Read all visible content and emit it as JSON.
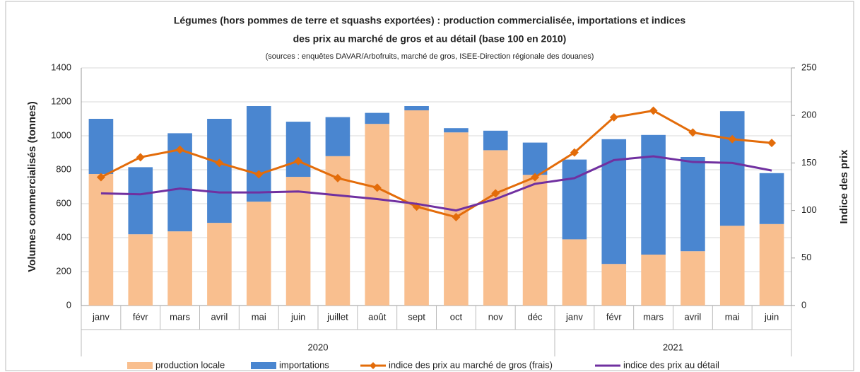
{
  "chart_data": {
    "type": "bar",
    "title": "Légumes (hors pommes de terre et squashs exportées) : production commercialisée, importations et indices",
    "title_line2": "des prix au marché de gros et au détail (base 100 en 2010)",
    "subtitle": "(sources : enquêtes DAVAR/Arbofruits, marché de gros, ISEE-Direction régionale des douanes)",
    "ylabel": "Volumes commercialisés (tonnes)",
    "y2label": "Indice des prix",
    "groups": [
      {
        "label": "2020",
        "categories": [
          "janv",
          "févr",
          "mars",
          "avril",
          "mai",
          "juin",
          "juillet",
          "août",
          "sept",
          "oct",
          "nov",
          "déc"
        ]
      },
      {
        "label": "2021",
        "categories": [
          "janv",
          "févr",
          "mars",
          "avril",
          "mai",
          "juin"
        ]
      }
    ],
    "series": [
      {
        "name": "production locale",
        "color": "#f9bf8f",
        "kind": "bar",
        "values": [
          775,
          420,
          437,
          487,
          612,
          758,
          880,
          1070,
          1150,
          1020,
          915,
          770,
          390,
          245,
          300,
          320,
          470,
          480
        ]
      },
      {
        "name": "importations",
        "color": "#4a86d0",
        "kind": "bar",
        "values": [
          325,
          395,
          578,
          613,
          563,
          325,
          230,
          65,
          25,
          25,
          115,
          190,
          470,
          735,
          705,
          555,
          675,
          300
        ]
      },
      {
        "name": "indice des prix au marché de gros (frais)",
        "color": "#e36c0a",
        "kind": "line",
        "marker": "diamond",
        "axis": "y2",
        "values": [
          135,
          156,
          164,
          150,
          138,
          152,
          134,
          124,
          104,
          93,
          118,
          135,
          161,
          198,
          205,
          182,
          175,
          171
        ]
      },
      {
        "name": "indice des prix au détail",
        "color": "#7030a0",
        "kind": "line",
        "axis": "y2",
        "values": [
          118,
          117,
          123,
          119,
          119,
          120,
          116,
          112,
          107,
          100,
          112,
          128,
          134,
          153,
          157,
          151,
          150,
          142
        ]
      }
    ],
    "ylim": [
      0,
      1400
    ],
    "yticks": [
      0,
      200,
      400,
      600,
      800,
      1000,
      1200,
      1400
    ],
    "y2lim": [
      0,
      250
    ],
    "y2ticks": [
      0,
      50,
      100,
      150,
      200,
      250
    ],
    "grid": true,
    "legend": "bottom"
  }
}
